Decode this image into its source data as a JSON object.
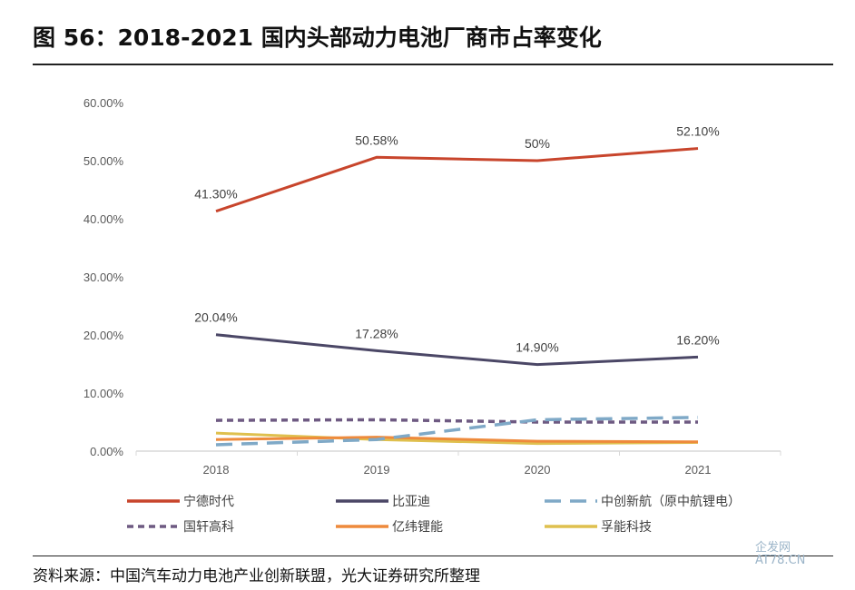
{
  "title": "图 56：2018-2021 国内头部动力电池厂商市占率变化",
  "source": "资料来源：中国汽车动力电池产业创新联盟，光大证券研究所整理",
  "watermark": "企发网 AT78.CN",
  "chart_data": {
    "type": "line",
    "categories": [
      "2018",
      "2019",
      "2020",
      "2021"
    ],
    "ylim": [
      0,
      60
    ],
    "yticks": [
      "0.00%",
      "10.00%",
      "20.00%",
      "30.00%",
      "40.00%",
      "50.00%",
      "60.00%"
    ],
    "legend_position": "bottom",
    "grid": false,
    "series": [
      {
        "name": "宁德时代",
        "values": [
          41.3,
          50.58,
          50,
          52.1
        ],
        "labels": [
          "41.30%",
          "50.58%",
          "50%",
          "52.10%"
        ],
        "color": "#c8452c",
        "dash": "solid"
      },
      {
        "name": "比亚迪",
        "values": [
          20.04,
          17.28,
          14.9,
          16.2
        ],
        "labels": [
          "20.04%",
          "17.28%",
          "14.90%",
          "16.20%"
        ],
        "color": "#4b4766",
        "dash": "solid"
      },
      {
        "name": "中创新航（原中航锂电）",
        "values": [
          1.1,
          2.0,
          5.4,
          5.8
        ],
        "color": "#7fa9c7",
        "dash": "long"
      },
      {
        "name": "国轩高科",
        "values": [
          5.3,
          5.4,
          5.0,
          5.0
        ],
        "color": "#6e5a82",
        "dash": "short"
      },
      {
        "name": "亿纬锂能",
        "values": [
          2.0,
          2.4,
          1.7,
          1.6
        ],
        "color": "#ee8a3c",
        "dash": "solid"
      },
      {
        "name": "孚能科技",
        "values": [
          3.1,
          2.0,
          1.3,
          1.5
        ],
        "color": "#dfc04e",
        "dash": "solid"
      }
    ]
  }
}
